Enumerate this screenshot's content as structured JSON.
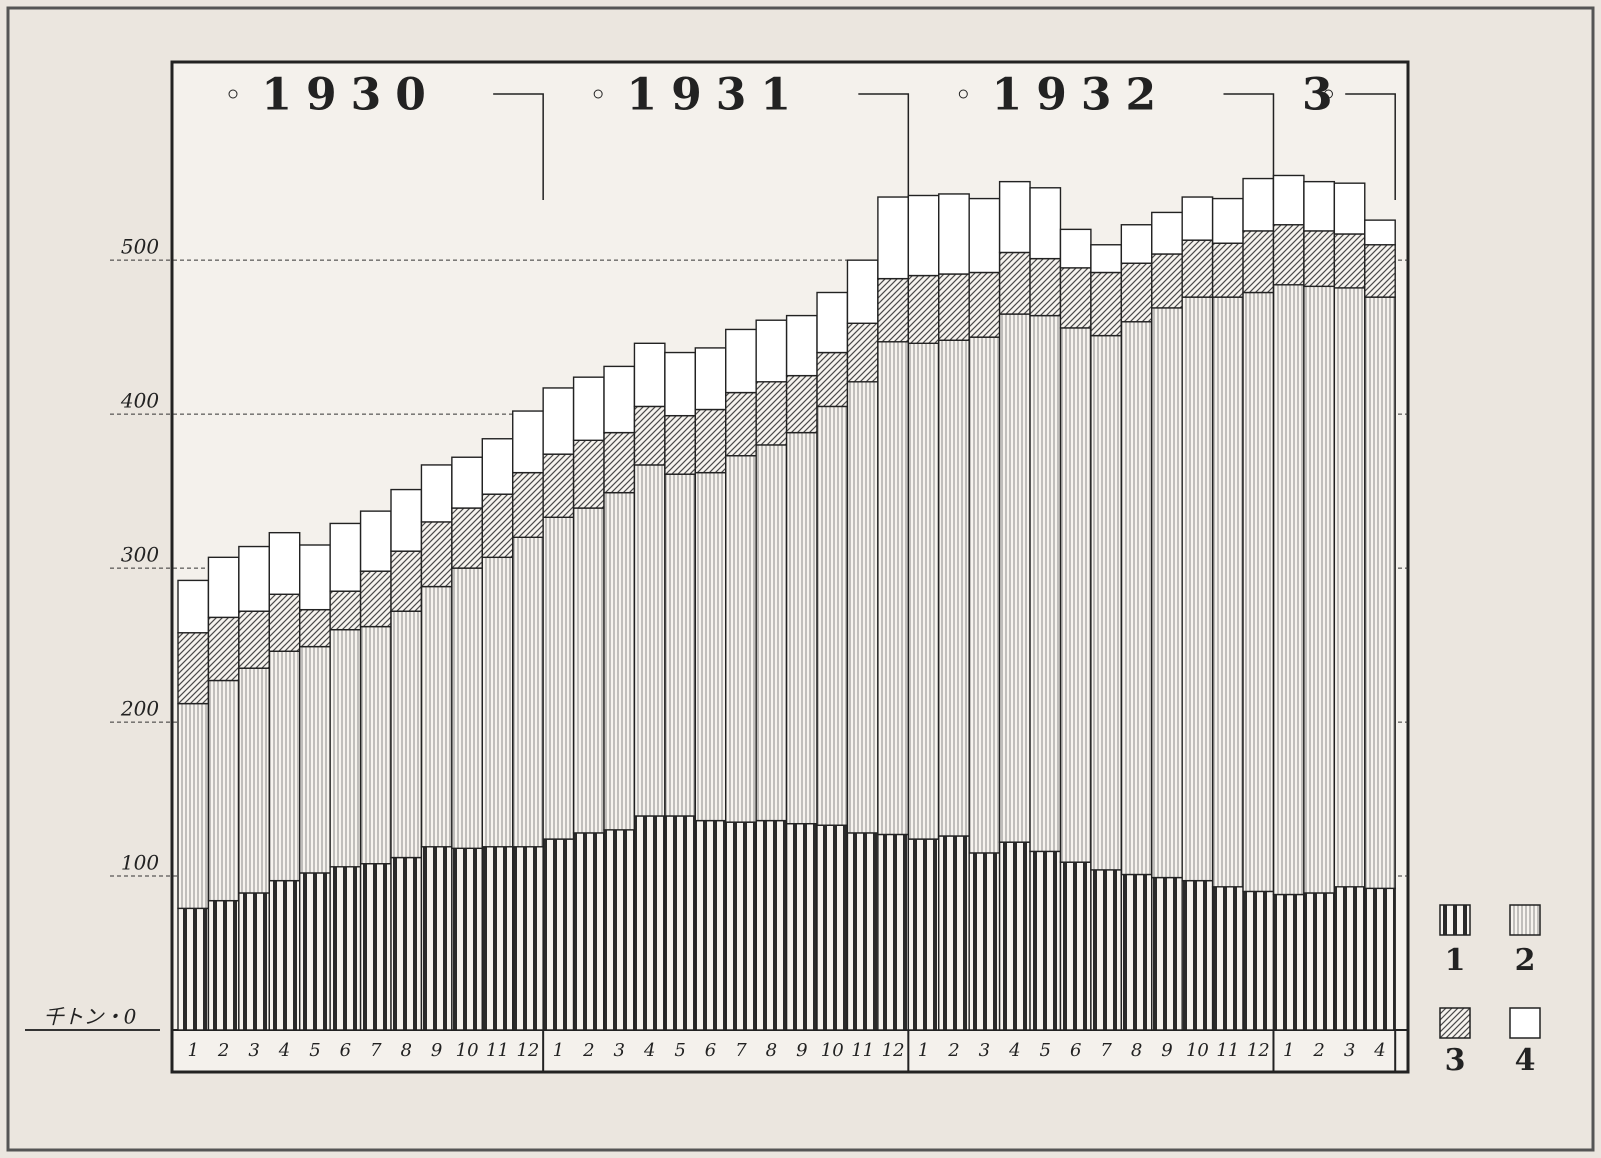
{
  "chart_data": {
    "type": "stacked-bar",
    "groups": [
      {
        "label": "1930",
        "months": [
          "1",
          "2",
          "3",
          "4",
          "5",
          "6",
          "7",
          "8",
          "9",
          "10",
          "11",
          "12"
        ]
      },
      {
        "label": "1931",
        "months": [
          "1",
          "2",
          "3",
          "4",
          "5",
          "6",
          "7",
          "8",
          "9",
          "10",
          "11",
          "12"
        ]
      },
      {
        "label": "1932",
        "months": [
          "1",
          "2",
          "3",
          "4",
          "5",
          "6",
          "7",
          "8",
          "9",
          "10",
          "11",
          "12"
        ]
      },
      {
        "label": "3",
        "months": [
          "1",
          "2",
          "3",
          "4"
        ]
      }
    ],
    "series": [
      {
        "name": "1",
        "color": "#2a2a2a",
        "values": [
          79,
          84,
          89,
          97,
          102,
          106,
          108,
          112,
          119,
          118,
          119,
          119,
          124,
          128,
          130,
          139,
          139,
          136,
          135,
          136,
          134,
          133,
          128,
          127,
          124,
          126,
          115,
          122,
          116,
          109,
          104,
          101,
          99,
          97,
          93,
          90,
          88,
          89,
          93,
          92
        ]
      },
      {
        "name": "2",
        "color": "#6e6e6e",
        "values": [
          133,
          143,
          146,
          149,
          147,
          154,
          154,
          160,
          169,
          182,
          188,
          201,
          209,
          211,
          219,
          228,
          222,
          226,
          238,
          244,
          254,
          272,
          293,
          320,
          322,
          322,
          335,
          343,
          348,
          347,
          347,
          359,
          370,
          379,
          383,
          389,
          396,
          394,
          389,
          384
        ]
      },
      {
        "name": "3",
        "color": "#4a4a4a",
        "values": [
          46,
          41,
          37,
          37,
          24,
          25,
          36,
          39,
          42,
          39,
          41,
          42,
          41,
          44,
          39,
          38,
          38,
          41,
          41,
          41,
          37,
          35,
          38,
          41,
          44,
          43,
          42,
          40,
          37,
          39,
          41,
          38,
          35,
          37,
          35,
          40,
          39,
          36,
          35,
          34
        ]
      },
      {
        "name": "4",
        "color": "#ffffff",
        "values": [
          34,
          39,
          42,
          40,
          42,
          44,
          39,
          40,
          37,
          33,
          36,
          40,
          43,
          41,
          43,
          41,
          41,
          40,
          41,
          40,
          39,
          39,
          41,
          53,
          52,
          52,
          48,
          46,
          46,
          25,
          18,
          25,
          27,
          28,
          29,
          34,
          32,
          32,
          33,
          16
        ]
      }
    ],
    "ylim": [
      0,
      630
    ],
    "yticks": [
      {
        "value": 0,
        "label": "千トン・0"
      },
      100,
      200,
      300,
      400,
      500
    ],
    "grid": true
  }
}
